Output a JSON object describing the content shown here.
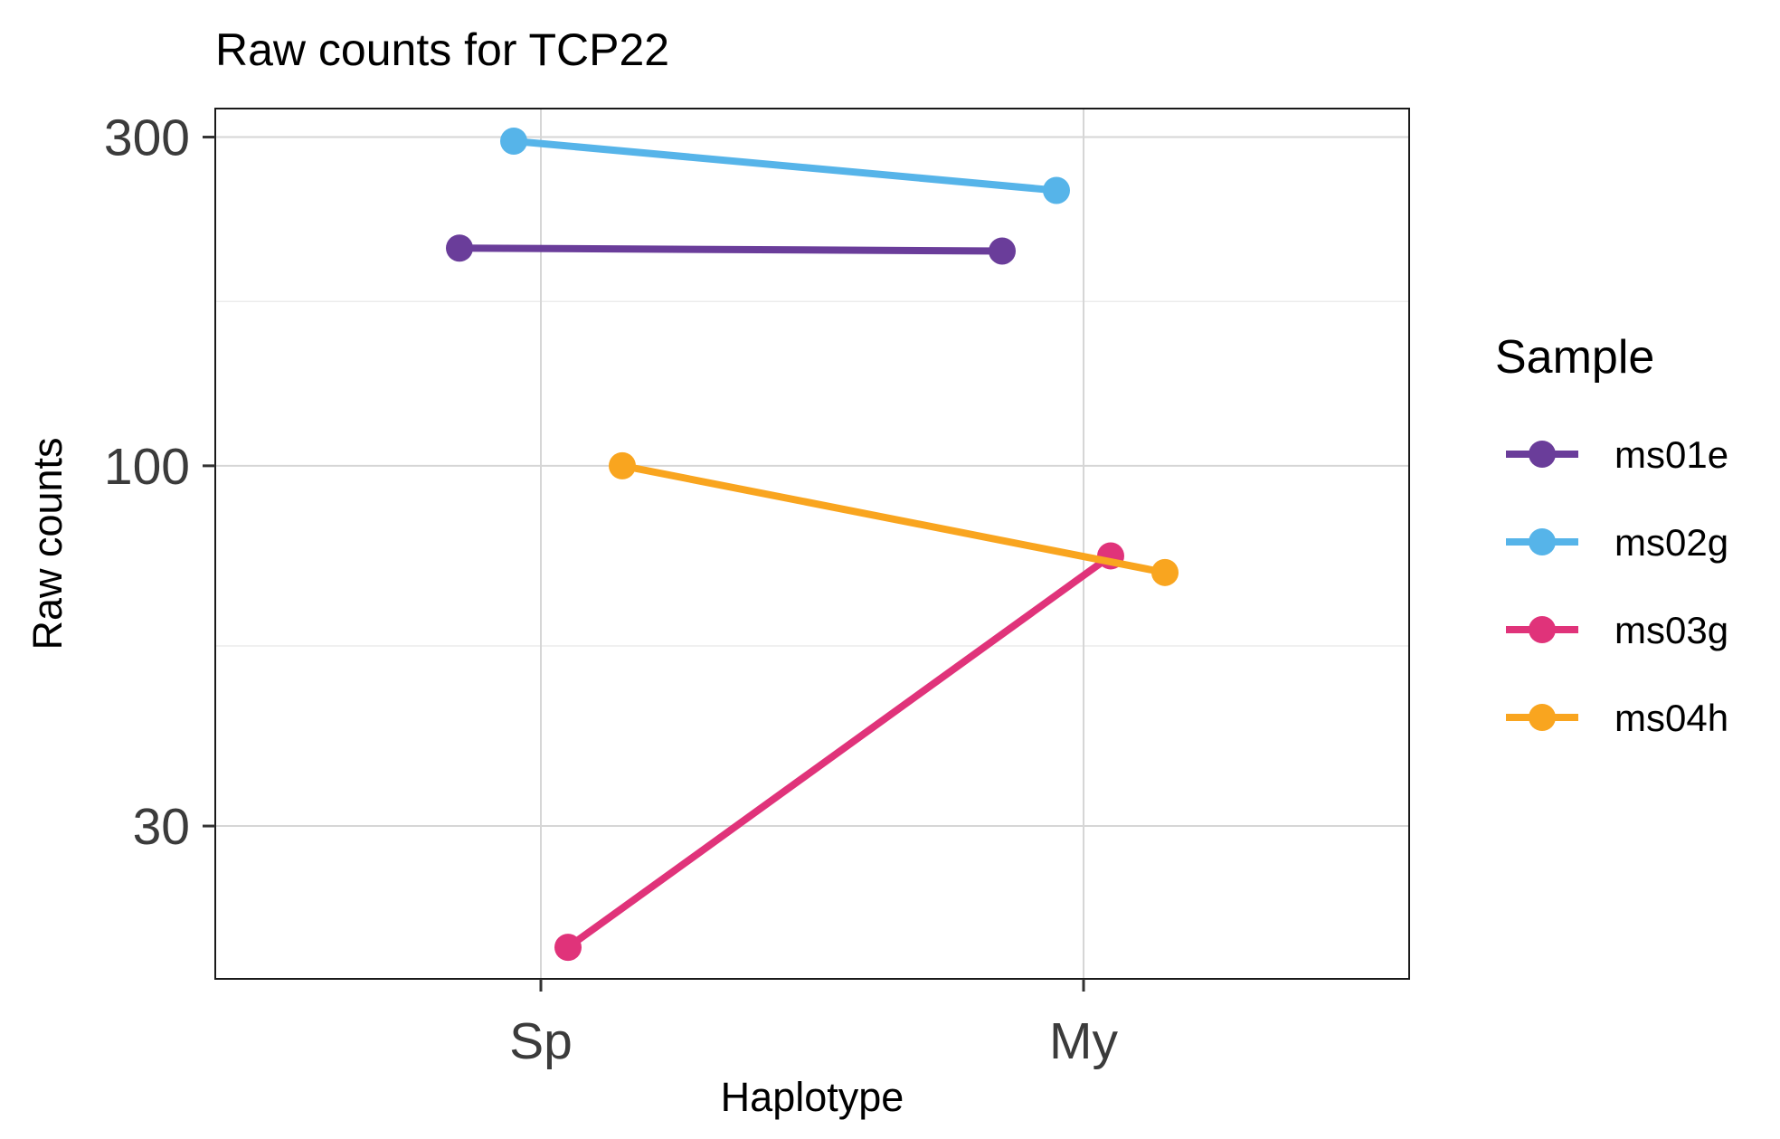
{
  "chart_data": {
    "type": "line",
    "title": "Raw counts for TCP22",
    "xlabel": "Haplotype",
    "ylabel": "Raw counts",
    "categories": [
      "Sp",
      "My"
    ],
    "y_scale": "log10",
    "ylim": [
      18,
      330
    ],
    "y_ticks": [
      30,
      100,
      300
    ],
    "y_tick_labels": [
      "30",
      "100",
      "300"
    ],
    "grid": true,
    "legend_title": "Sample",
    "legend_position": "right",
    "series": [
      {
        "name": "ms01e",
        "color": "#6a3d9a",
        "values": [
          207,
          205
        ]
      },
      {
        "name": "ms02g",
        "color": "#56b4e9",
        "values": [
          296,
          251
        ]
      },
      {
        "name": "ms03g",
        "color": "#e0337a",
        "values": [
          20,
          74
        ]
      },
      {
        "name": "ms04h",
        "color": "#f9a51f",
        "values": [
          100,
          70
        ]
      }
    ]
  }
}
